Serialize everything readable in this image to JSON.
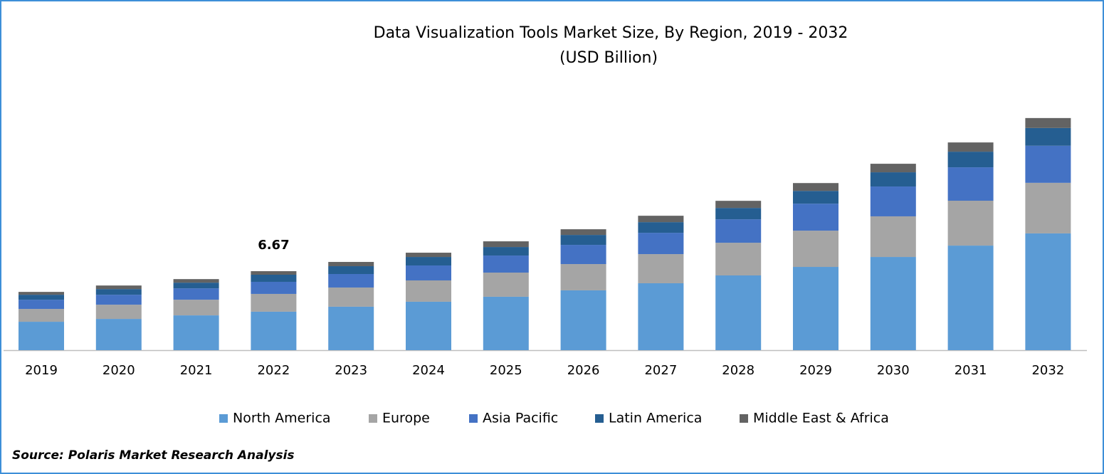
{
  "chart_data": {
    "type": "stacked_bar",
    "title": "Data Visualization Tools Market Size, By Region, 2019 - 2032",
    "subtitle": "(USD Billion)",
    "categories": [
      "2019",
      "2020",
      "2021",
      "2022",
      "2023",
      "2024",
      "2025",
      "2026",
      "2027",
      "2028",
      "2029",
      "2030",
      "2031",
      "2032"
    ],
    "series": [
      {
        "name": "North America",
        "color": "#5b9bd5",
        "values": [
          2.4,
          2.64,
          2.94,
          3.25,
          3.67,
          4.09,
          4.51,
          5.05,
          5.65,
          6.31,
          7.03,
          7.87,
          8.83,
          9.86
        ]
      },
      {
        "name": "Europe",
        "color": "#a5a5a5",
        "values": [
          1.08,
          1.2,
          1.32,
          1.5,
          1.62,
          1.8,
          2.04,
          2.22,
          2.46,
          2.76,
          3.06,
          3.43,
          3.79,
          4.27
        ]
      },
      {
        "name": "Asia Pacific",
        "color": "#4472c4",
        "values": [
          0.78,
          0.84,
          0.96,
          1.02,
          1.14,
          1.26,
          1.44,
          1.62,
          1.8,
          1.98,
          2.28,
          2.52,
          2.82,
          3.13
        ]
      },
      {
        "name": "Latin America",
        "color": "#255e91",
        "values": [
          0.42,
          0.48,
          0.48,
          0.6,
          0.66,
          0.72,
          0.72,
          0.84,
          0.9,
          0.96,
          1.08,
          1.2,
          1.32,
          1.5
        ]
      },
      {
        "name": "Middle East & Africa",
        "color": "#636363",
        "values": [
          0.24,
          0.3,
          0.3,
          0.3,
          0.36,
          0.36,
          0.48,
          0.48,
          0.54,
          0.6,
          0.66,
          0.72,
          0.78,
          0.84
        ]
      }
    ],
    "annotations": [
      {
        "category": "2022",
        "value": 6.67
      }
    ],
    "legend": "bottom",
    "source": "Source: Polaris Market Research Analysis"
  }
}
